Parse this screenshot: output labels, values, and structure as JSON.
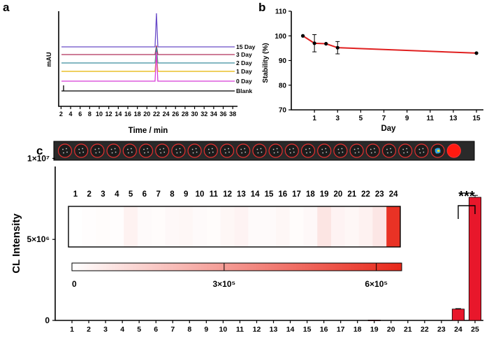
{
  "panels": {
    "a": "a",
    "b": "b",
    "c": "c"
  },
  "chart_data": [
    {
      "id": "a",
      "type": "line",
      "title": "",
      "xlabel": "Time / min",
      "ylabel": "mAU",
      "xlim": [
        1.5,
        39
      ],
      "xticks": [
        2,
        4,
        6,
        8,
        10,
        12,
        14,
        16,
        18,
        20,
        22,
        24,
        26,
        28,
        30,
        32,
        34,
        36,
        38
      ],
      "peak_time": 22,
      "series": [
        {
          "name": "15 Day",
          "color": "#6a4cc8",
          "peak": 3.0
        },
        {
          "name": "3 Day",
          "color": "#b0305a",
          "peak": 0.8
        },
        {
          "name": "2 Day",
          "color": "#3a8e9e",
          "peak": 1.4
        },
        {
          "name": "1 Day",
          "color": "#e5b400",
          "peak": 1.7
        },
        {
          "name": "0 Day",
          "color": "#d83cd8",
          "peak": 2.6
        },
        {
          "name": "Blank",
          "color": "#000000",
          "peak": 0
        }
      ]
    },
    {
      "id": "b",
      "type": "line",
      "title": "",
      "xlabel": "Day",
      "ylabel": "Stability  (%)",
      "xlim": [
        -1,
        15.6
      ],
      "ylim": [
        70,
        110
      ],
      "xticks": [
        1,
        3,
        5,
        7,
        9,
        11,
        13,
        15
      ],
      "yticks": [
        70,
        80,
        90,
        100,
        110
      ],
      "color": "#e02020",
      "x": [
        0,
        1,
        2,
        3,
        15
      ],
      "y": [
        100,
        97,
        96.8,
        95.2,
        93
      ],
      "err": [
        0,
        3.5,
        0,
        2.5,
        0
      ]
    },
    {
      "id": "c",
      "type": "bar",
      "title": "",
      "xlabel": "",
      "ylabel": "CL Intensity",
      "ylim": [
        0,
        9500000
      ],
      "ytick_labels": [
        "0",
        "5×10⁶",
        "1×10⁷"
      ],
      "yticks": [
        0,
        5000000,
        10000000
      ],
      "categories": [
        "1",
        "2",
        "3",
        "4",
        "5",
        "6",
        "7",
        "8",
        "9",
        "10",
        "11",
        "12",
        "13",
        "14",
        "15",
        "16",
        "17",
        "18",
        "19",
        "20",
        "21",
        "22",
        "23",
        "24",
        "25"
      ],
      "values": [
        0,
        0,
        0,
        0,
        0,
        0,
        0,
        0,
        0,
        0,
        0,
        0,
        0,
        0,
        0,
        0,
        0,
        0,
        20000,
        0,
        0,
        0,
        0,
        700000,
        7600000
      ],
      "errors": [
        0,
        0,
        0,
        0,
        0,
        0,
        0,
        0,
        0,
        0,
        0,
        0,
        0,
        0,
        0,
        0,
        0,
        0,
        0,
        0,
        0,
        0,
        0,
        30000,
        120000
      ],
      "bar_color": "#e8172b",
      "significance": "***",
      "significance_pair": [
        "24",
        "25"
      ],
      "heatmap": {
        "labels": [
          "1",
          "2",
          "3",
          "4",
          "5",
          "6",
          "7",
          "8",
          "9",
          "10",
          "11",
          "12",
          "13",
          "14",
          "15",
          "16",
          "17",
          "18",
          "19",
          "20",
          "21",
          "22",
          "23",
          "24"
        ],
        "values": [
          0,
          5000,
          10000,
          5000,
          40000,
          15000,
          10000,
          20000,
          25000,
          15000,
          10000,
          25000,
          35000,
          15000,
          15000,
          25000,
          10000,
          20000,
          80000,
          35000,
          25000,
          40000,
          75000,
          620000
        ],
        "range": [
          0,
          650000
        ]
      },
      "colorbar": {
        "tick_values": [
          0,
          300000,
          600000
        ],
        "tick_labels": [
          "0",
          "3×10⁵",
          "6×10⁵"
        ]
      }
    }
  ]
}
